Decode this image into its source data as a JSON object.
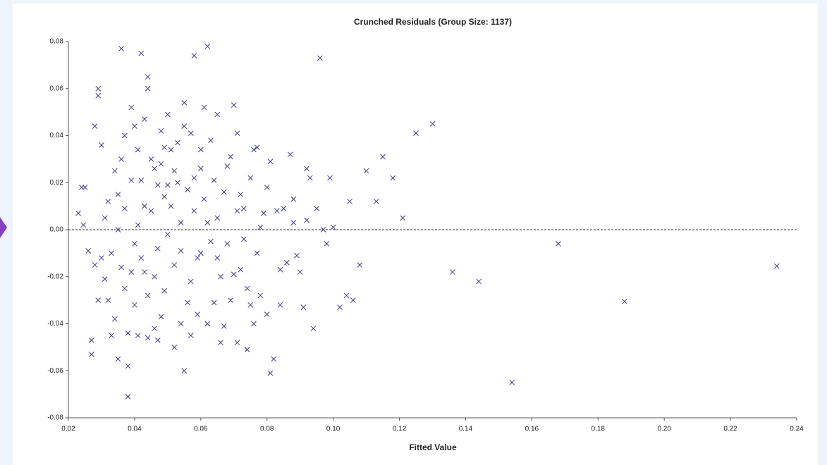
{
  "chart_data": {
    "type": "scatter",
    "title": "Crunched Residuals (Group Size: 1137)",
    "x_label": "Fitted Value",
    "x": [
      0.234,
      0.188,
      0.168,
      0.154,
      0.144,
      0.136,
      0.13,
      0.125,
      0.121,
      0.118,
      0.115,
      0.113,
      0.11,
      0.108,
      0.106,
      0.104,
      0.105,
      0.102,
      0.1,
      0.099,
      0.098,
      0.097,
      0.096,
      0.095,
      0.094,
      0.093,
      0.092,
      0.092,
      0.091,
      0.09,
      0.089,
      0.088,
      0.088,
      0.087,
      0.086,
      0.085,
      0.084,
      0.084,
      0.083,
      0.082,
      0.081,
      0.081,
      0.08,
      0.08,
      0.079,
      0.078,
      0.077,
      0.076,
      0.076,
      0.075,
      0.074,
      0.074,
      0.073,
      0.072,
      0.072,
      0.071,
      0.071,
      0.07,
      0.07,
      0.069,
      0.068,
      0.067,
      0.066,
      0.065,
      0.064,
      0.063,
      0.062,
      0.062,
      0.061,
      0.06,
      0.059,
      0.058,
      0.058,
      0.057,
      0.056,
      0.055,
      0.055,
      0.054,
      0.053,
      0.052,
      0.051,
      0.05,
      0.05,
      0.049,
      0.048,
      0.047,
      0.046,
      0.045,
      0.044,
      0.044,
      0.044,
      0.043,
      0.042,
      0.042,
      0.041,
      0.04,
      0.039,
      0.038,
      0.038,
      0.037,
      0.036,
      0.036,
      0.035,
      0.034,
      0.033,
      0.032,
      0.031,
      0.03,
      0.029,
      0.029,
      0.029,
      0.028,
      0.028,
      0.027,
      0.027,
      0.026,
      0.025,
      0.024,
      0.023,
      0.0245,
      0.031,
      0.033,
      0.035,
      0.037,
      0.039,
      0.04,
      0.041,
      0.043,
      0.045,
      0.046,
      0.047,
      0.048,
      0.049,
      0.051,
      0.052,
      0.053,
      0.054,
      0.056,
      0.057,
      0.058,
      0.059,
      0.06,
      0.061,
      0.063,
      0.064,
      0.065,
      0.066,
      0.067,
      0.068,
      0.069,
      0.071,
      0.073,
      0.075,
      0.077,
      0.078,
      0.034,
      0.036,
      0.038,
      0.04,
      0.042,
      0.044,
      0.046,
      0.048,
      0.05,
      0.052,
      0.054,
      0.032,
      0.03,
      0.035,
      0.039,
      0.043,
      0.047,
      0.049,
      0.055,
      0.057,
      0.06,
      0.062,
      0.065,
      0.041,
      0.037
    ],
    "series": [
      {
        "color": "#3a3a8c",
        "values": [
          -0.0155,
          -0.0305,
          -0.006,
          -0.065,
          -0.022,
          -0.018,
          0.045,
          0.041,
          0.005,
          0.022,
          0.031,
          0.012,
          0.025,
          -0.015,
          -0.03,
          -0.028,
          0.012,
          -0.033,
          0.001,
          0.022,
          -0.006,
          0.0,
          0.073,
          0.009,
          -0.042,
          0.022,
          0.026,
          0.004,
          -0.033,
          -0.018,
          -0.011,
          0.013,
          0.003,
          0.032,
          -0.014,
          0.009,
          -0.032,
          -0.017,
          0.008,
          -0.055,
          -0.061,
          0.029,
          -0.036,
          0.018,
          0.007,
          -0.028,
          0.035,
          0.034,
          -0.04,
          -0.032,
          -0.051,
          -0.025,
          0.009,
          0.015,
          -0.017,
          -0.048,
          0.041,
          0.053,
          -0.019,
          0.031,
          -0.006,
          -0.041,
          -0.048,
          0.049,
          -0.031,
          0.038,
          0.078,
          -0.04,
          0.052,
          0.026,
          -0.012,
          0.074,
          0.022,
          0.041,
          -0.031,
          0.054,
          -0.06,
          -0.009,
          0.02,
          -0.05,
          0.034,
          0.049,
          -0.002,
          0.014,
          -0.037,
          0.019,
          -0.02,
          0.03,
          -0.046,
          0.06,
          0.065,
          0.01,
          0.075,
          -0.012,
          0.034,
          -0.006,
          0.052,
          -0.071,
          -0.058,
          0.04,
          0.077,
          -0.016,
          -0.055,
          0.025,
          -0.045,
          0.012,
          -0.021,
          0.036,
          0.06,
          0.057,
          -0.03,
          0.044,
          -0.015,
          -0.053,
          -0.047,
          -0.009,
          0.018,
          0.018,
          0.007,
          0.002,
          0.005,
          -0.01,
          0.015,
          -0.025,
          0.021,
          -0.032,
          0.002,
          -0.018,
          0.008,
          0.026,
          -0.008,
          0.042,
          -0.026,
          0.01,
          -0.015,
          0.037,
          0.003,
          0.017,
          -0.022,
          0.008,
          -0.036,
          -0.01,
          0.013,
          -0.005,
          0.021,
          0.005,
          -0.02,
          0.016,
          0.027,
          -0.03,
          0.008,
          -0.004,
          0.022,
          -0.01,
          0.001,
          -0.038,
          0.03,
          -0.044,
          0.044,
          0.021,
          -0.028,
          -0.042,
          0.028,
          0.019,
          0.025,
          -0.04,
          -0.03,
          -0.012,
          0.0,
          -0.018,
          0.047,
          -0.047,
          0.035,
          0.044,
          -0.045,
          0.034,
          0.003,
          -0.012,
          -0.045,
          0.009
        ]
      }
    ],
    "xlim": [
      0.02,
      0.24
    ],
    "xticks": [
      0.02,
      0.04,
      0.06,
      0.08,
      {
        "value": 0.1,
        "label": "0.10"
      },
      0.12,
      0.14,
      0.16,
      0.18,
      {
        "value": 0.2,
        "label": "0.20"
      },
      0.22,
      0.24
    ],
    "ylim": [
      -0.08,
      0.08
    ],
    "yticks": [
      -0.08,
      -0.06,
      -0.04,
      -0.02,
      {
        "value": 0,
        "label": "0.00"
      },
      0.02,
      0.04,
      0.06,
      0.08
    ],
    "zero_line": true
  }
}
